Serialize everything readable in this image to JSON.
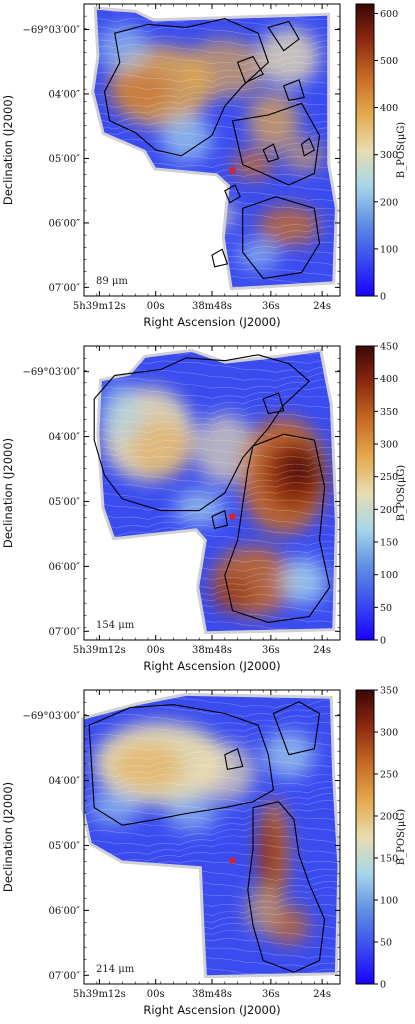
{
  "chart_data": [
    {
      "type": "heatmap",
      "panel_label": "89 μm",
      "xlabel": "Right Ascension (J2000)",
      "ylabel": "Declination (J2000)",
      "xticks": [
        "5h39m12s",
        "00s",
        "38m48s",
        "36s",
        "24s"
      ],
      "yticks": [
        "−69°03′00″",
        "04′00″",
        "05′00″",
        "06′00″",
        "07′00″"
      ],
      "colorbar": {
        "label": "B_POS(μG)",
        "min": 0,
        "max": 620,
        "ticks": [
          0,
          100,
          200,
          300,
          400,
          500,
          600
        ]
      },
      "colormap": [
        "#1a00ff",
        "#3a4cf0",
        "#5f8fe0",
        "#a6d6ea",
        "#e8dcb0",
        "#e3a84c",
        "#c86a24",
        "#8e2a10",
        "#3b0606"
      ],
      "marker": {
        "symbol": "star",
        "color": "#e0201c"
      }
    },
    {
      "type": "heatmap",
      "panel_label": "154 μm",
      "xlabel": "Right Ascension (J2000)",
      "ylabel": "Declination (J2000)",
      "xticks": [
        "5h39m12s",
        "00s",
        "38m48s",
        "36s",
        "24s"
      ],
      "yticks": [
        "−69°03′00″",
        "04′00″",
        "05′00″",
        "06′00″",
        "07′00″"
      ],
      "colorbar": {
        "label": "B_POS(μG)",
        "min": 0,
        "max": 450,
        "ticks": [
          0,
          50,
          100,
          150,
          200,
          250,
          300,
          350,
          400,
          450
        ]
      },
      "colormap": [
        "#1a00ff",
        "#3a4cf0",
        "#5f8fe0",
        "#a6d6ea",
        "#e8dcb0",
        "#e3a84c",
        "#c86a24",
        "#8e2a10",
        "#3b0606"
      ],
      "marker": {
        "symbol": "star",
        "color": "#e0201c"
      }
    },
    {
      "type": "heatmap",
      "panel_label": "214 μm",
      "xlabel": "Right Ascension (J2000)",
      "ylabel": "Declination (J2000)",
      "xticks": [
        "5h39m12s",
        "00s",
        "38m48s",
        "36s",
        "24s"
      ],
      "yticks": [
        "−69°03′00″",
        "04′00″",
        "05′00″",
        "06′00″",
        "07′00″"
      ],
      "colorbar": {
        "label": "B_POS(μG)",
        "min": 0,
        "max": 350,
        "ticks": [
          0,
          50,
          100,
          150,
          200,
          250,
          300,
          350
        ]
      },
      "colormap": [
        "#1a00ff",
        "#3a4cf0",
        "#5f8fe0",
        "#a6d6ea",
        "#e8dcb0",
        "#e3a84c",
        "#c86a24",
        "#8e2a10",
        "#3b0606"
      ],
      "marker": {
        "symbol": "star",
        "color": "#e0201c"
      }
    }
  ]
}
